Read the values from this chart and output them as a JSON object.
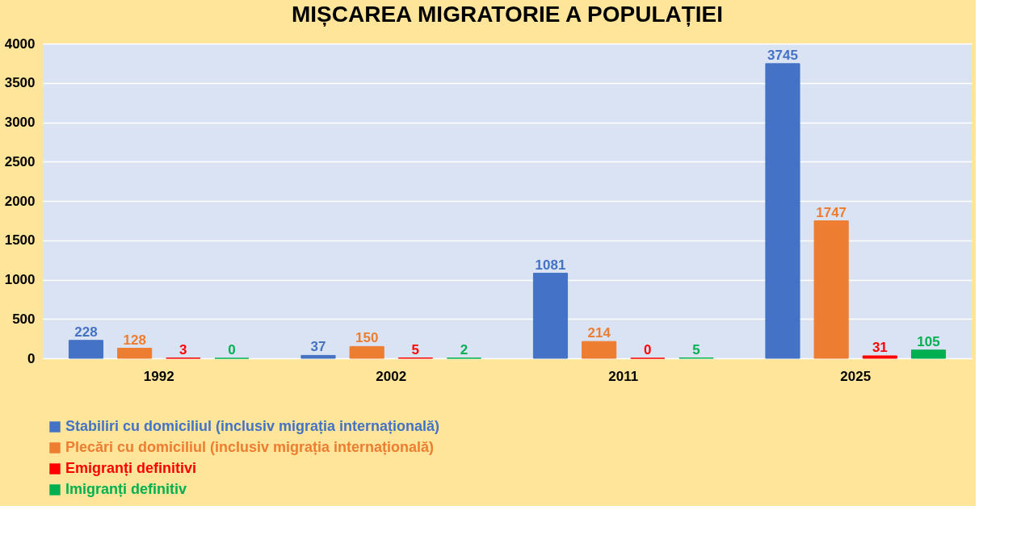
{
  "chart_data": {
    "type": "bar",
    "title": "MIȘCAREA MIGRATORIE A POPULAȚIEI",
    "categories": [
      "1992",
      "2002",
      "2011",
      "2025"
    ],
    "series": [
      {
        "name": "Stabiliri cu domiciliul (inclusiv migrația internațională)",
        "color": "#4472c4",
        "values": [
          228,
          37,
          1081,
          3745
        ]
      },
      {
        "name": "Plecări cu domiciliul  (inclusiv migrația internațională)",
        "color": "#ed7d31",
        "values": [
          128,
          150,
          214,
          1747
        ]
      },
      {
        "name": "Emigranți definitivi",
        "color": "#ff0000",
        "values": [
          3,
          5,
          0,
          31
        ]
      },
      {
        "name": "Imigranți definitiv",
        "color": "#00b050",
        "values": [
          0,
          2,
          5,
          105
        ]
      }
    ],
    "ylim": [
      0,
      4000
    ],
    "yticks": [
      0,
      500,
      1000,
      1500,
      2000,
      2500,
      3000,
      3500,
      4000
    ],
    "grid": "y",
    "legend": "bottom",
    "data_labels": true
  }
}
